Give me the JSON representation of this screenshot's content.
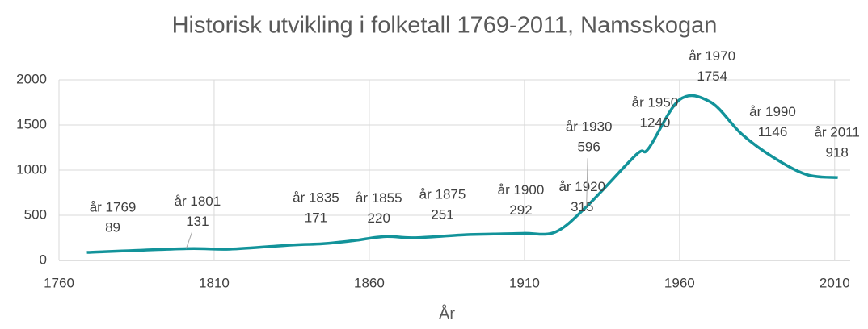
{
  "chart_data": {
    "type": "line",
    "title": "Historisk utvikling i folketall 1769-2011, Namsskogan",
    "x_label": "År",
    "x": [
      1769,
      1801,
      1815,
      1835,
      1845,
      1855,
      1865,
      1875,
      1891,
      1900,
      1910,
      1920,
      1930,
      1946,
      1950,
      1960,
      1970,
      1980,
      1990,
      2001,
      2011
    ],
    "series": [
      {
        "name": "Folketall",
        "color": "#12939a",
        "values": [
          89,
          131,
          125,
          171,
          185,
          220,
          265,
          251,
          285,
          292,
          300,
          315,
          596,
          1170,
          1240,
          1780,
          1754,
          1400,
          1146,
          950,
          918
        ],
        "point_labels": [
          "år 1769",
          "år 1801",
          null,
          "år 1835",
          null,
          "år 1855",
          null,
          "år 1875",
          null,
          "år 1900",
          null,
          "år 1920",
          "år 1930",
          null,
          "år 1950",
          null,
          "år 1970",
          null,
          "år 1990",
          null,
          "år 2011"
        ]
      }
    ],
    "xlim": [
      1760,
      2015
    ],
    "xticks": [
      1760,
      1810,
      1860,
      1910,
      1960,
      2010
    ],
    "ylim": [
      0,
      2000
    ],
    "yticks": [
      0,
      500,
      1000,
      1500,
      2000
    ],
    "grid": true
  }
}
